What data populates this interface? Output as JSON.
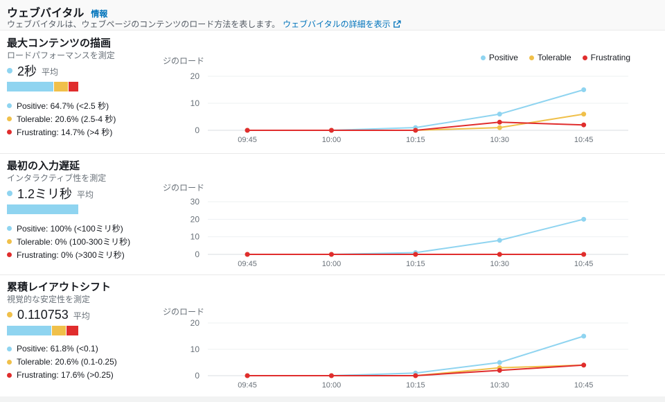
{
  "header": {
    "title": "ウェブバイタル",
    "info_link": "情報",
    "description": "ウェブバイタルは、ウェブページのコンテンツのロード方法を表します。",
    "details_link": "ウェブバイタルの詳細を表示"
  },
  "colors": {
    "positive": "#8fd4f0",
    "tolerable": "#f0c04a",
    "frustrating": "#e02d2d",
    "link": "#0073bb",
    "grid": "#edf0f2",
    "axis": "#d8dde1",
    "text_muted": "#687078"
  },
  "chart_legend": [
    "Positive",
    "Tolerable",
    "Frustrating"
  ],
  "sections": [
    {
      "title": "最大コンテンツの描画",
      "measure": "ロードパフォーマンスを測定",
      "avg_value": "2秒",
      "avg_suffix": "平均",
      "avg_dot": "positive",
      "bar_segments": [
        {
          "color_key": "positive",
          "pct": 64.7
        },
        {
          "color_key": "tolerable",
          "pct": 20.6
        },
        {
          "color_key": "frustrating",
          "pct": 14.7
        }
      ],
      "legend": [
        {
          "color_key": "positive",
          "label": "Positive: 64.7% (<2.5 秒)"
        },
        {
          "color_key": "tolerable",
          "label": "Tolerable: 20.6% (2.5-4 秒)"
        },
        {
          "color_key": "frustrating",
          "label": "Frustrating: 14.7% (>4 秒)"
        }
      ]
    },
    {
      "title": "最初の入力遅延",
      "measure": "インタラクティブ性を測定",
      "avg_value": "1.2ミリ秒",
      "avg_suffix": "平均",
      "avg_dot": "positive",
      "bar_segments": [
        {
          "color_key": "positive",
          "pct": 100
        },
        {
          "color_key": "tolerable",
          "pct": 0
        },
        {
          "color_key": "frustrating",
          "pct": 0
        }
      ],
      "legend": [
        {
          "color_key": "positive",
          "label": "Positive: 100% (<100ミリ秒)"
        },
        {
          "color_key": "tolerable",
          "label": "Tolerable: 0% (100-300ミリ秒)"
        },
        {
          "color_key": "frustrating",
          "label": "Frustrating: 0% (>300ミリ秒)"
        }
      ]
    },
    {
      "title": "累積レイアウトシフト",
      "measure": "視覚的な安定性を測定",
      "avg_value": "0.110753",
      "avg_suffix": "平均",
      "avg_dot": "tolerable",
      "bar_segments": [
        {
          "color_key": "positive",
          "pct": 61.8
        },
        {
          "color_key": "tolerable",
          "pct": 20.6
        },
        {
          "color_key": "frustrating",
          "pct": 17.6
        }
      ],
      "legend": [
        {
          "color_key": "positive",
          "label": "Positive: 61.8% (<0.1)"
        },
        {
          "color_key": "tolerable",
          "label": "Tolerable: 20.6% (0.1-0.25)"
        },
        {
          "color_key": "frustrating",
          "label": "Frustrating: 17.6% (>0.25)"
        }
      ]
    }
  ],
  "chart_data": [
    {
      "type": "line",
      "title": "最大コンテンツの描画",
      "ylabel": "ジのロード",
      "x": [
        "09:45",
        "10:00",
        "10:15",
        "10:30",
        "10:45"
      ],
      "series": [
        {
          "name": "Positive",
          "color_key": "positive",
          "values": [
            0,
            0,
            1,
            6,
            15
          ]
        },
        {
          "name": "Tolerable",
          "color_key": "tolerable",
          "values": [
            0,
            0,
            0,
            1,
            6
          ]
        },
        {
          "name": "Frustrating",
          "color_key": "frustrating",
          "values": [
            0,
            0,
            0,
            3,
            2
          ]
        }
      ],
      "ylim": [
        0,
        20
      ],
      "yticks": [
        0,
        10,
        20
      ],
      "legend_position": "top-right",
      "grid": true
    },
    {
      "type": "line",
      "title": "最初の入力遅延",
      "ylabel": "ジのロード",
      "x": [
        "09:45",
        "10:00",
        "10:15",
        "10:30",
        "10:45"
      ],
      "series": [
        {
          "name": "Positive",
          "color_key": "positive",
          "values": [
            0,
            0,
            1,
            8,
            20
          ]
        },
        {
          "name": "Tolerable",
          "color_key": "tolerable",
          "values": [
            0,
            0,
            0,
            0,
            0
          ]
        },
        {
          "name": "Frustrating",
          "color_key": "frustrating",
          "values": [
            0,
            0,
            0,
            0,
            0
          ]
        }
      ],
      "ylim": [
        0,
        30
      ],
      "yticks": [
        0,
        10,
        20,
        30
      ],
      "legend_position": "none",
      "grid": true
    },
    {
      "type": "line",
      "title": "累積レイアウトシフト",
      "ylabel": "ジのロード",
      "x": [
        "09:45",
        "10:00",
        "10:15",
        "10:30",
        "10:45"
      ],
      "series": [
        {
          "name": "Positive",
          "color_key": "positive",
          "values": [
            0,
            0,
            1,
            5,
            15
          ]
        },
        {
          "name": "Tolerable",
          "color_key": "tolerable",
          "values": [
            0,
            0,
            0,
            3,
            4
          ]
        },
        {
          "name": "Frustrating",
          "color_key": "frustrating",
          "values": [
            0,
            0,
            0,
            2,
            4
          ]
        }
      ],
      "ylim": [
        0,
        20
      ],
      "yticks": [
        0,
        10,
        20
      ],
      "legend_position": "none",
      "grid": true
    }
  ]
}
